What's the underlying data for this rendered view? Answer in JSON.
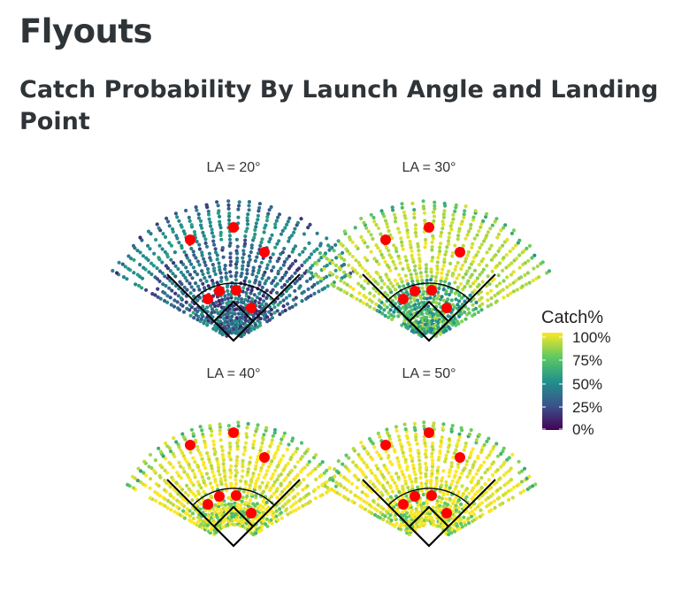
{
  "header": {
    "title": "Flyouts",
    "subtitle": "Catch Probability By Launch Angle and Landing Point"
  },
  "legend": {
    "title": "Catch%",
    "ticks": [
      "100%",
      "75%",
      "50%",
      "25%",
      "0%"
    ],
    "tick_values": [
      1.0,
      0.75,
      0.5,
      0.25,
      0.0
    ],
    "placement": "right"
  },
  "colors": {
    "viridis": [
      "#440154",
      "#3b528b",
      "#21918c",
      "#5ec962",
      "#fde725"
    ],
    "fielder_marker": "#ff0000",
    "field_lines": "#000000"
  },
  "chart_data": {
    "type": "scatter",
    "grid": false,
    "facets": [
      {
        "label": "LA = 20°",
        "launch_angle": 20,
        "mean_catch_probability_outfield": 0.5,
        "mean_catch_probability_infield": 0.35
      },
      {
        "label": "LA = 30°",
        "launch_angle": 30,
        "mean_catch_probability_outfield": 0.9,
        "mean_catch_probability_infield": 0.65
      },
      {
        "label": "LA = 40°",
        "launch_angle": 40,
        "mean_catch_probability_outfield": 0.97,
        "mean_catch_probability_infield": 0.9
      },
      {
        "label": "LA = 50°",
        "launch_angle": 50,
        "mean_catch_probability_outfield": 0.98,
        "mean_catch_probability_infield": 0.95
      }
    ],
    "fielders": [
      "LF",
      "CF",
      "RF",
      "3B",
      "SS",
      "2B",
      "1B"
    ]
  }
}
